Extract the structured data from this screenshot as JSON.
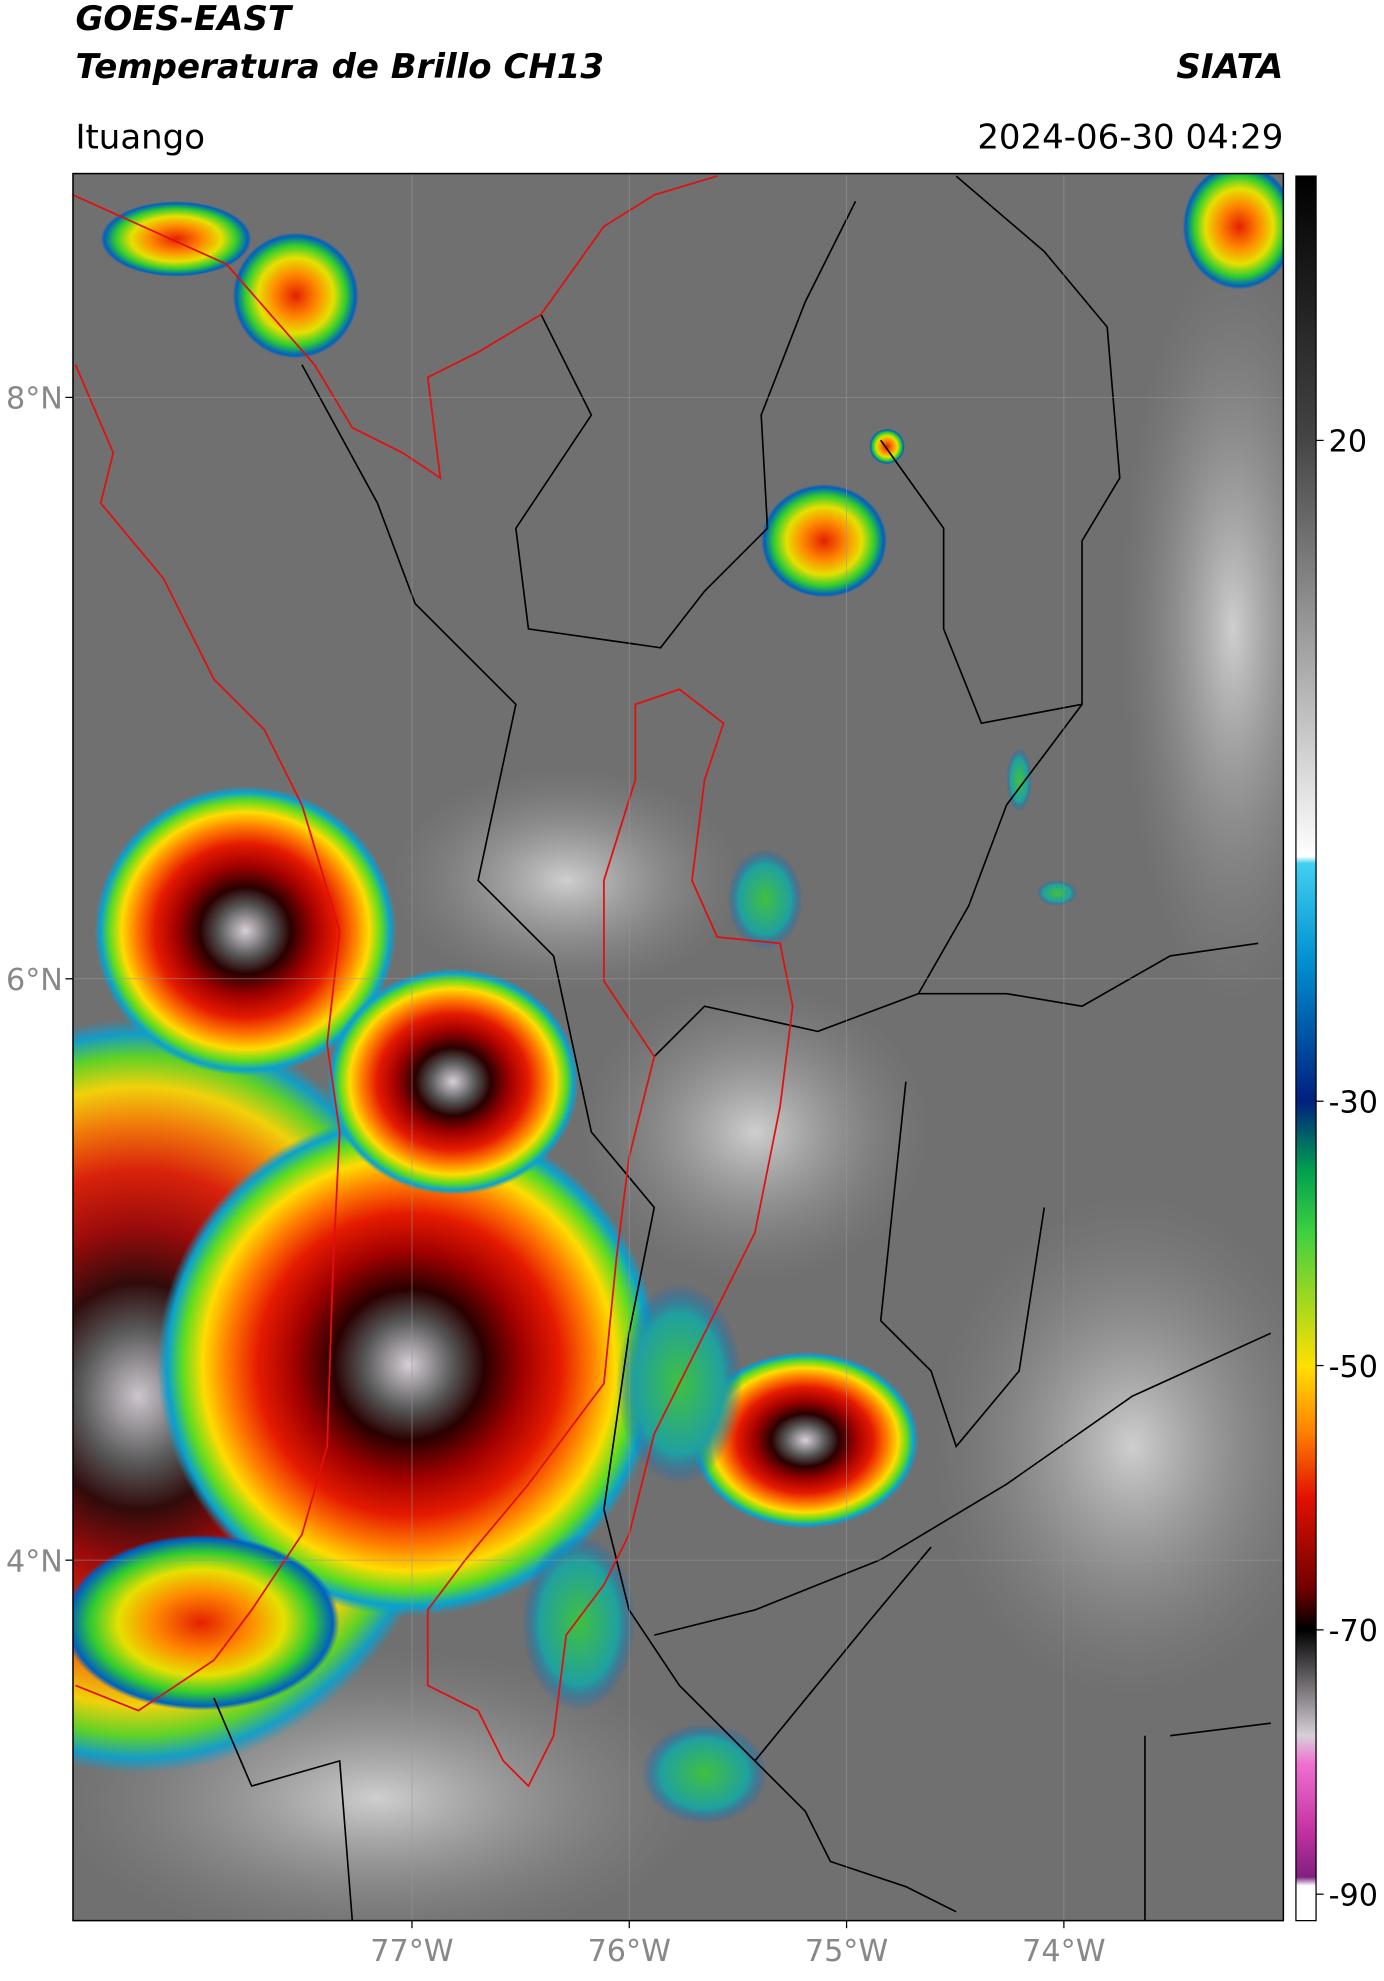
{
  "header": {
    "title": "GOES-EAST",
    "subtitle": "Temperatura de Brillo CH13",
    "source": "SIATA",
    "location": "Ituango",
    "datetime": "2024-06-30 04:29"
  },
  "map": {
    "xlim": [
      -78.56,
      -72.99
    ],
    "ylim": [
      2.76,
      8.77
    ],
    "xticks": [
      {
        "value": -77,
        "label": "77°W"
      },
      {
        "value": -76,
        "label": "76°W"
      },
      {
        "value": -75,
        "label": "75°W"
      },
      {
        "value": -74,
        "label": "74°W"
      }
    ],
    "yticks": [
      {
        "value": 8,
        "label": "8°N"
      },
      {
        "value": 6,
        "label": "6°N"
      },
      {
        "value": 4,
        "label": "4°N"
      }
    ]
  },
  "colorbar": {
    "lim": [
      -92,
      40
    ],
    "ticks": [
      20,
      -30,
      -50,
      -70,
      -90
    ]
  }
}
